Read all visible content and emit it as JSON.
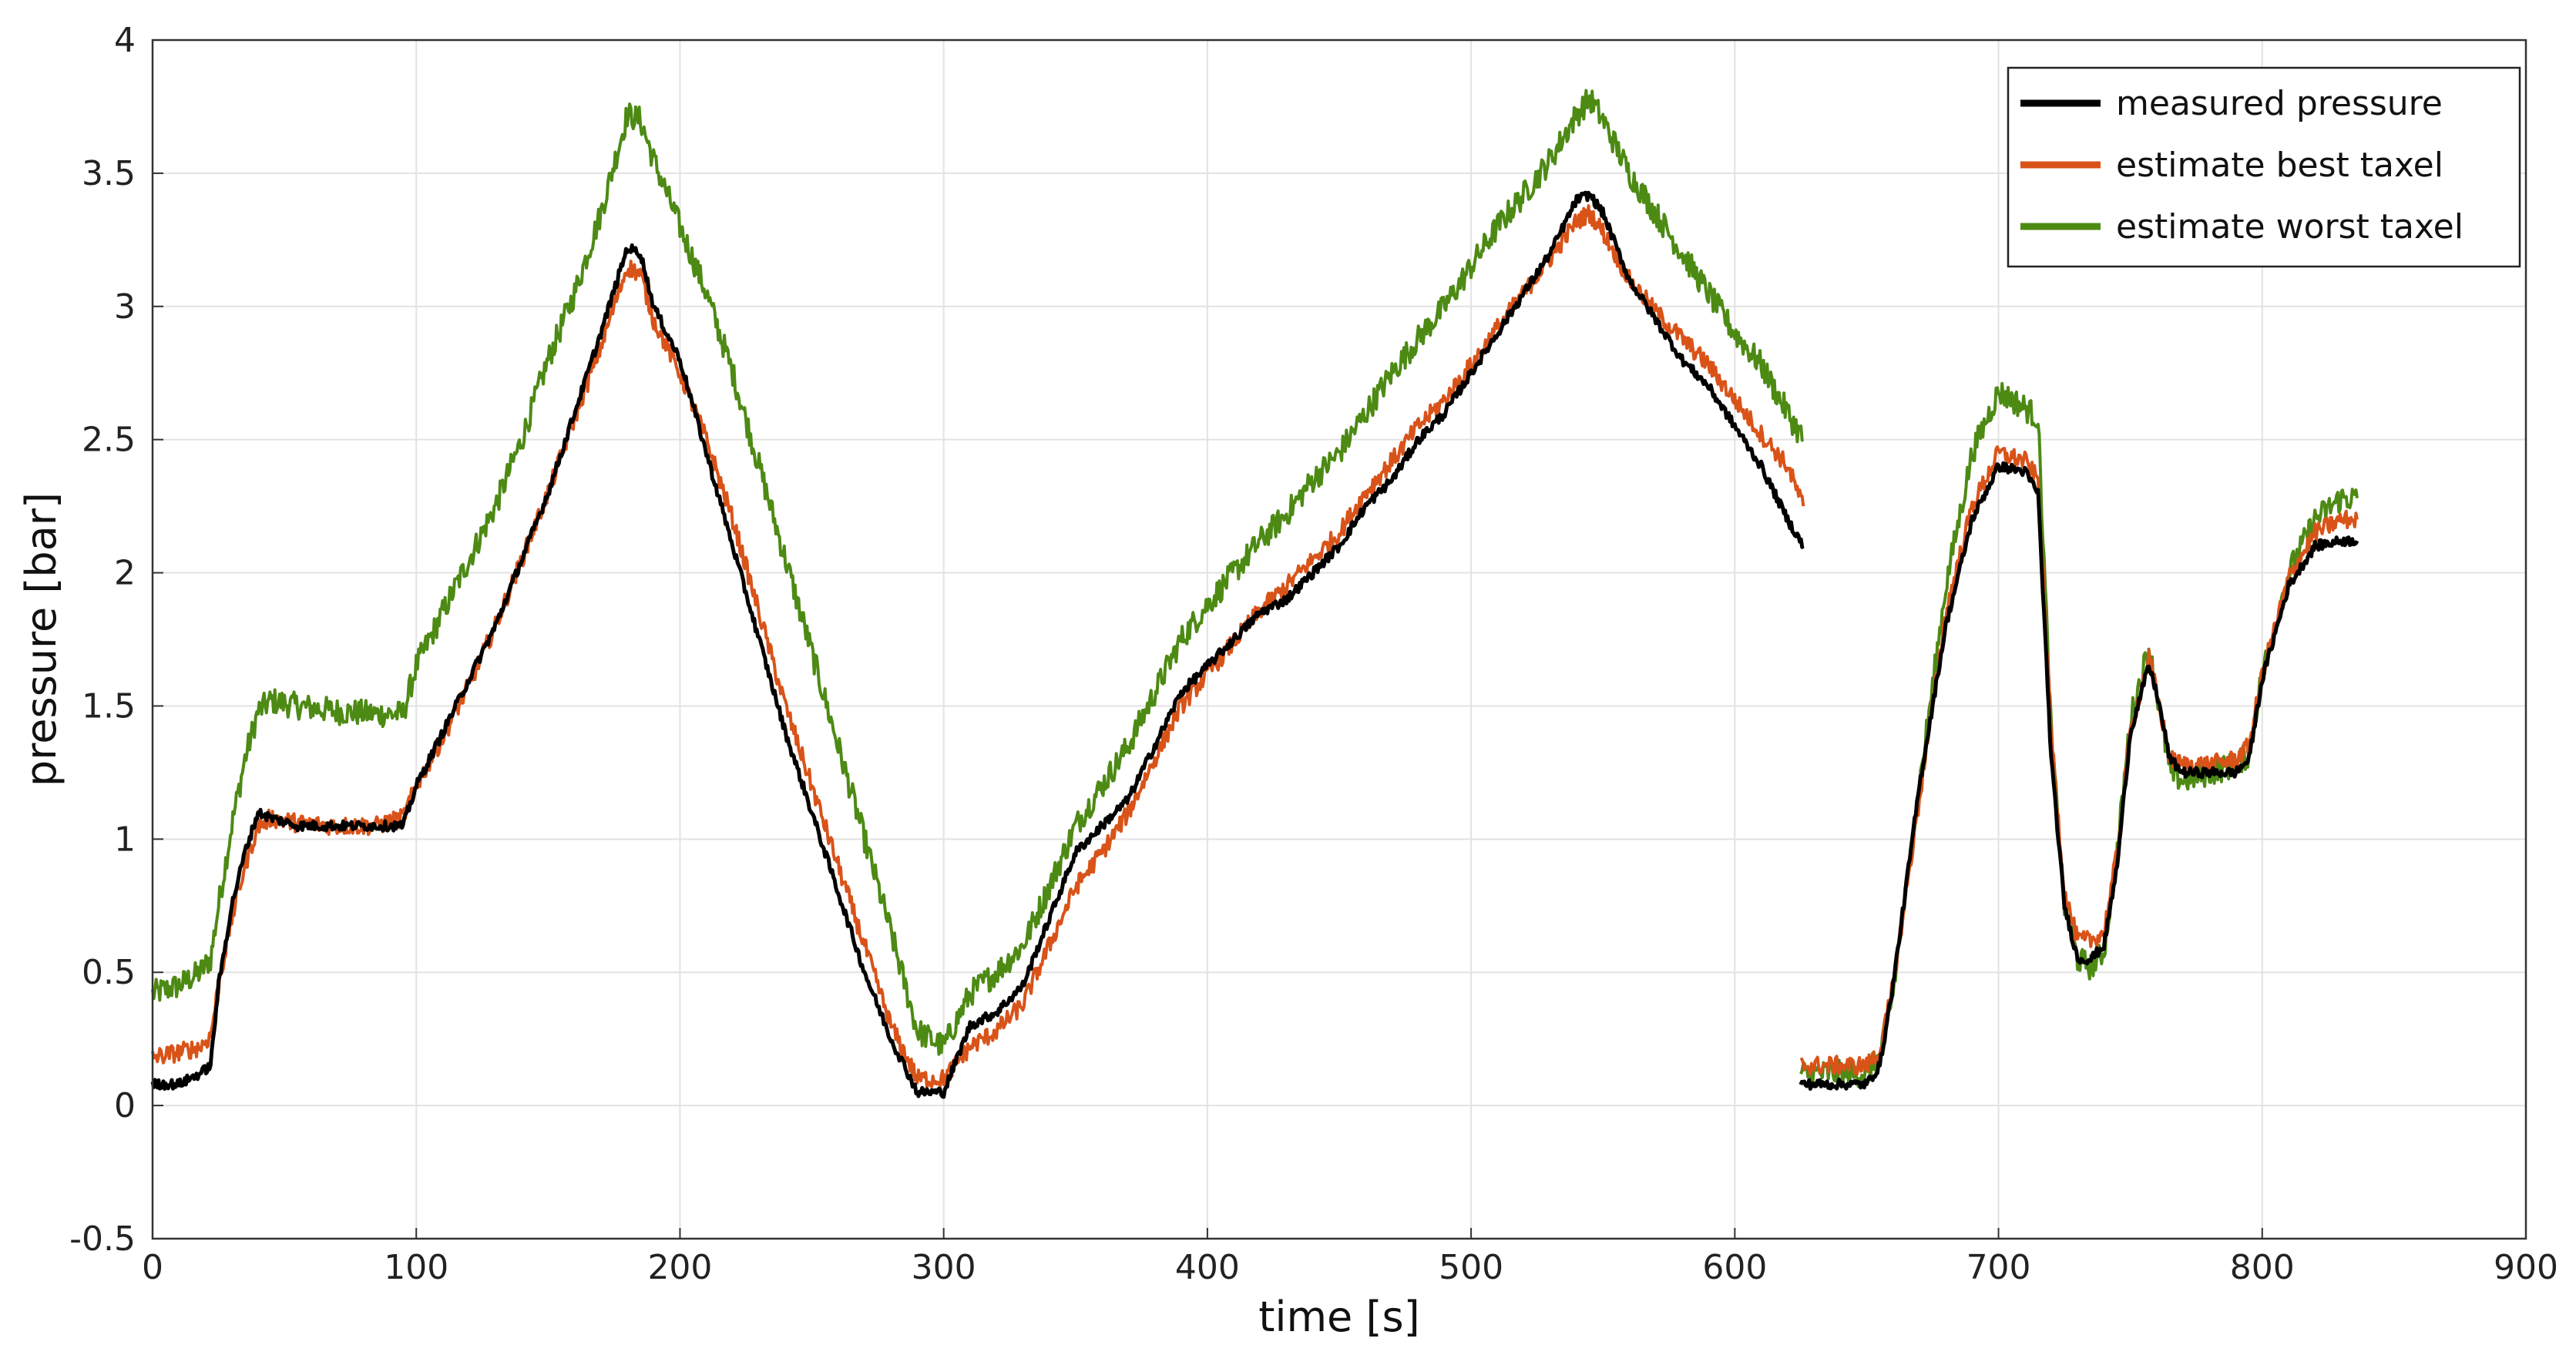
{
  "chart_data": {
    "type": "line",
    "xlabel": "time [s]",
    "ylabel": "pressure [bar]",
    "xlim": [
      0,
      900
    ],
    "ylim": [
      -0.5,
      4
    ],
    "xticks": [
      0,
      100,
      200,
      300,
      400,
      500,
      600,
      700,
      800,
      900
    ],
    "yticks": [
      -0.5,
      0,
      0.5,
      1,
      1.5,
      2,
      2.5,
      3,
      3.5,
      4
    ],
    "xtick_labels": [
      "0",
      "100",
      "200",
      "300",
      "400",
      "500",
      "600",
      "700",
      "800",
      "900"
    ],
    "ytick_labels": [
      "-0.5",
      "0",
      "0.5",
      "1",
      "1.5",
      "2",
      "2.5",
      "3",
      "3.5",
      "4"
    ],
    "grid": true,
    "legend_position": "top-right",
    "series": [
      {
        "name": "measured pressure",
        "color": "#000000",
        "segments": [
          {
            "x": [
              0,
              10,
              18,
              22,
              25,
              30,
              35,
              40,
              45,
              55,
              70,
              85,
              95,
              100,
              110,
              120,
              130,
              140,
              150,
              160,
              170,
              180,
              185,
              190,
              200,
              210,
              220,
              230,
              240,
              250,
              260,
              270,
              280,
              290,
              300,
              310,
              320,
              330,
              340,
              350,
              360,
              370,
              380,
              390,
              400,
              410,
              420,
              430,
              440,
              450,
              460,
              470,
              480,
              490,
              500,
              510,
              520,
              530,
              540,
              545,
              550,
              560,
              570,
              580,
              590,
              600,
              610,
              620,
              626
            ],
            "y": [
              0.08,
              0.08,
              0.12,
              0.15,
              0.45,
              0.75,
              0.95,
              1.1,
              1.08,
              1.05,
              1.05,
              1.05,
              1.05,
              1.2,
              1.4,
              1.6,
              1.8,
              2.05,
              2.3,
              2.6,
              2.9,
              3.22,
              3.2,
              3.0,
              2.8,
              2.45,
              2.1,
              1.75,
              1.4,
              1.1,
              0.8,
              0.5,
              0.25,
              0.05,
              0.05,
              0.3,
              0.35,
              0.45,
              0.7,
              0.95,
              1.05,
              1.15,
              1.35,
              1.55,
              1.65,
              1.75,
              1.85,
              1.9,
              2.0,
              2.1,
              2.25,
              2.35,
              2.5,
              2.6,
              2.75,
              2.9,
              3.05,
              3.2,
              3.4,
              3.42,
              3.35,
              3.1,
              2.95,
              2.8,
              2.7,
              2.55,
              2.4,
              2.2,
              2.1
            ]
          },
          {
            "x": [
              625,
              640,
              650,
              655,
              660,
              670,
              680,
              690,
              700,
              710,
              715,
              720,
              725,
              730,
              735,
              740,
              745,
              750,
              757,
              760,
              765,
              770,
              780,
              790,
              795,
              800,
              810,
              820,
              830,
              836
            ],
            "y": [
              0.08,
              0.08,
              0.08,
              0.15,
              0.45,
              1.2,
              1.8,
              2.2,
              2.4,
              2.38,
              2.3,
              1.3,
              0.75,
              0.55,
              0.55,
              0.6,
              0.9,
              1.4,
              1.65,
              1.55,
              1.3,
              1.25,
              1.25,
              1.25,
              1.3,
              1.6,
              1.95,
              2.1,
              2.12,
              2.12
            ]
          }
        ]
      },
      {
        "name": "estimate best taxel",
        "color": "#d95319",
        "segments": [
          {
            "x": [
              0,
              10,
              18,
              22,
              25,
              30,
              35,
              40,
              45,
              55,
              70,
              85,
              95,
              100,
              110,
              120,
              130,
              140,
              150,
              160,
              170,
              180,
              185,
              190,
              200,
              210,
              220,
              230,
              240,
              250,
              260,
              270,
              280,
              290,
              300,
              310,
              320,
              330,
              340,
              350,
              360,
              370,
              380,
              390,
              400,
              410,
              420,
              430,
              440,
              450,
              460,
              470,
              480,
              490,
              500,
              510,
              520,
              530,
              540,
              545,
              550,
              560,
              570,
              580,
              590,
              600,
              610,
              620,
              626
            ],
            "y": [
              0.18,
              0.2,
              0.22,
              0.26,
              0.45,
              0.7,
              0.9,
              1.05,
              1.08,
              1.06,
              1.05,
              1.05,
              1.08,
              1.2,
              1.38,
              1.58,
              1.8,
              2.05,
              2.3,
              2.58,
              2.85,
              3.15,
              3.12,
              2.95,
              2.75,
              2.5,
              2.2,
              1.85,
              1.5,
              1.2,
              0.9,
              0.6,
              0.3,
              0.1,
              0.1,
              0.22,
              0.28,
              0.38,
              0.6,
              0.82,
              0.95,
              1.1,
              1.3,
              1.5,
              1.62,
              1.74,
              1.86,
              1.95,
              2.05,
              2.15,
              2.3,
              2.42,
              2.55,
              2.65,
              2.78,
              2.92,
              3.05,
              3.18,
              3.32,
              3.35,
              3.28,
              3.1,
              2.98,
              2.88,
              2.78,
              2.65,
              2.52,
              2.4,
              2.25
            ]
          },
          {
            "x": [
              625,
              640,
              650,
              655,
              660,
              670,
              680,
              690,
              700,
              710,
              715,
              720,
              725,
              730,
              735,
              740,
              745,
              750,
              757,
              760,
              765,
              770,
              780,
              790,
              795,
              800,
              810,
              820,
              830,
              836
            ],
            "y": [
              0.15,
              0.15,
              0.15,
              0.2,
              0.45,
              1.15,
              1.85,
              2.25,
              2.45,
              2.42,
              2.35,
              1.4,
              0.8,
              0.62,
              0.62,
              0.65,
              0.95,
              1.4,
              1.68,
              1.55,
              1.3,
              1.28,
              1.28,
              1.3,
              1.35,
              1.62,
              1.98,
              2.15,
              2.2,
              2.2
            ]
          }
        ]
      },
      {
        "name": "estimate worst taxel",
        "color": "#4d8a14",
        "segments": [
          {
            "x": [
              0,
              10,
              18,
              22,
              25,
              30,
              35,
              40,
              45,
              55,
              70,
              85,
              95,
              100,
              110,
              120,
              130,
              140,
              150,
              160,
              170,
              180,
              185,
              190,
              200,
              210,
              220,
              230,
              240,
              250,
              260,
              270,
              280,
              290,
              300,
              310,
              320,
              330,
              340,
              350,
              360,
              370,
              380,
              390,
              400,
              410,
              420,
              430,
              440,
              450,
              460,
              470,
              480,
              490,
              500,
              510,
              520,
              530,
              540,
              545,
              550,
              560,
              570,
              580,
              590,
              600,
              610,
              620,
              626
            ],
            "y": [
              0.42,
              0.45,
              0.5,
              0.55,
              0.75,
              1.05,
              1.3,
              1.48,
              1.52,
              1.5,
              1.48,
              1.47,
              1.47,
              1.65,
              1.85,
              2.05,
              2.25,
              2.5,
              2.8,
              3.05,
              3.35,
              3.72,
              3.7,
              3.55,
              3.3,
              3.05,
              2.75,
              2.4,
              2.05,
              1.7,
              1.35,
              1.0,
              0.65,
              0.28,
              0.22,
              0.42,
              0.5,
              0.6,
              0.82,
              1.05,
              1.2,
              1.35,
              1.55,
              1.75,
              1.88,
              2.0,
              2.12,
              2.22,
              2.35,
              2.45,
              2.6,
              2.75,
              2.88,
              3.0,
              3.15,
              3.3,
              3.42,
              3.55,
              3.72,
              3.78,
              3.7,
              3.5,
              3.35,
              3.2,
              3.05,
              2.9,
              2.78,
              2.6,
              2.5
            ]
          },
          {
            "x": [
              625,
              640,
              650,
              655,
              660,
              670,
              680,
              690,
              700,
              710,
              715,
              720,
              725,
              730,
              735,
              740,
              745,
              750,
              757,
              760,
              765,
              770,
              780,
              790,
              795,
              800,
              810,
              820,
              830,
              836
            ],
            "y": [
              0.12,
              0.12,
              0.12,
              0.18,
              0.42,
              1.2,
              1.95,
              2.45,
              2.68,
              2.62,
              2.58,
              1.4,
              0.75,
              0.55,
              0.52,
              0.58,
              0.95,
              1.45,
              1.72,
              1.55,
              1.25,
              1.22,
              1.25,
              1.28,
              1.32,
              1.62,
              2.0,
              2.2,
              2.28,
              2.28
            ]
          }
        ]
      }
    ]
  }
}
